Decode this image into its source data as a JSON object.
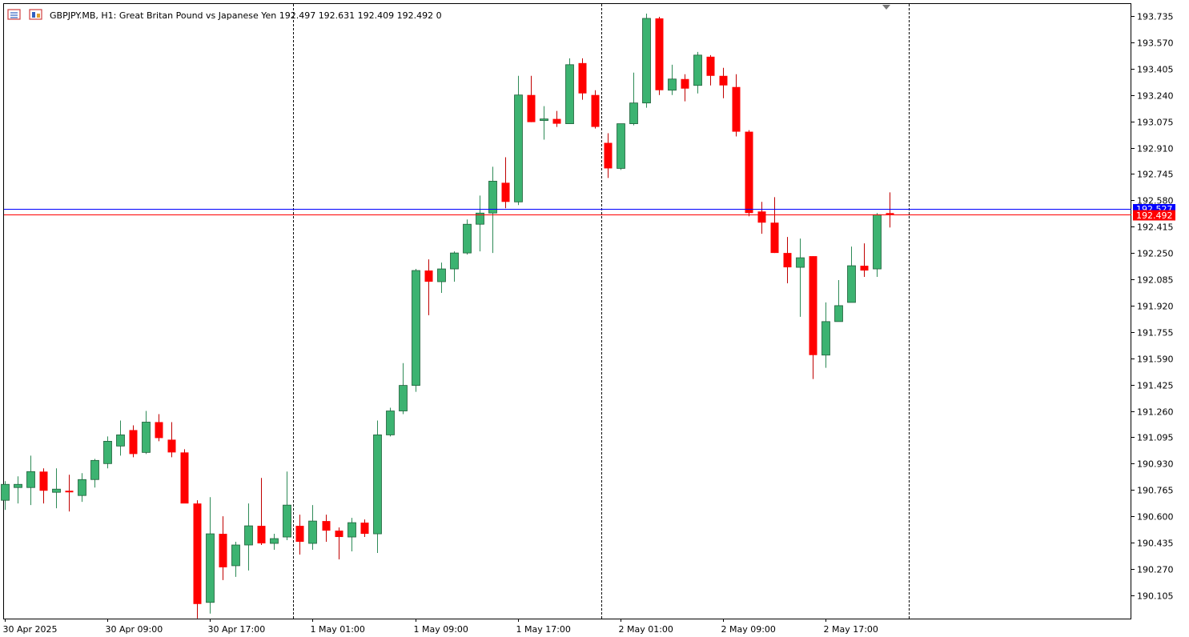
{
  "header": {
    "symbol": "GBPJPY.MB",
    "timeframe": "H1:",
    "description": "Great Britan Pound vs Japanese Yen",
    "ohlc": "192.497 192.631 192.409 192.492",
    "volume": "0",
    "icons": [
      "chart-menu-icon",
      "chart-window-icon"
    ]
  },
  "colors": {
    "bull": "#3cb371",
    "bear": "#ff0000",
    "grid": "#000000",
    "bid_line": "#ff0000",
    "ask_line": "#0000ff",
    "price_tag_bg": "#ff0000",
    "ask_tag_bg": "#0000ff"
  },
  "current_price_label": "192.492",
  "ask_price_label": "192.527",
  "chart_data": {
    "type": "candlestick",
    "timeframe": "H1",
    "ylim": [
      190.0,
      193.8
    ],
    "y_ticks": [
      "193.735",
      "193.570",
      "193.405",
      "193.240",
      "193.075",
      "192.910",
      "192.745",
      "192.580",
      "192.415",
      "192.250",
      "192.085",
      "191.920",
      "191.755",
      "191.590",
      "191.425",
      "191.260",
      "191.095",
      "190.930",
      "190.765",
      "190.600",
      "190.435",
      "190.270",
      "190.105"
    ],
    "x_tick_labels": [
      {
        "index": 0,
        "label": "30 Apr 2025"
      },
      {
        "index": 8,
        "label": "30 Apr 09:00"
      },
      {
        "index": 16,
        "label": "30 Apr 17:00"
      },
      {
        "index": 24,
        "label": "1 May 01:00"
      },
      {
        "index": 32,
        "label": "1 May 09:00"
      },
      {
        "index": 40,
        "label": "1 May 17:00"
      },
      {
        "index": 48,
        "label": "2 May 01:00"
      },
      {
        "index": 56,
        "label": "2 May 09:00"
      },
      {
        "index": 64,
        "label": "2 May 17:00"
      }
    ],
    "day_separators_after_index": [
      22.5,
      46.5,
      70.5
    ],
    "bid": 192.492,
    "ask": 192.527,
    "candles": [
      [
        190.7,
        190.82,
        190.64,
        190.8
      ],
      [
        190.78,
        190.85,
        190.68,
        190.8
      ],
      [
        190.78,
        190.98,
        190.67,
        190.88
      ],
      [
        190.88,
        190.9,
        190.68,
        190.76
      ],
      [
        190.75,
        190.9,
        190.65,
        190.77
      ],
      [
        190.76,
        190.86,
        190.63,
        190.75
      ],
      [
        190.73,
        190.87,
        190.69,
        190.83
      ],
      [
        190.83,
        190.96,
        190.78,
        190.95
      ],
      [
        190.93,
        191.1,
        190.9,
        191.07
      ],
      [
        191.04,
        191.2,
        190.98,
        191.11
      ],
      [
        191.14,
        191.17,
        190.97,
        190.99
      ],
      [
        191.0,
        191.26,
        190.99,
        191.19
      ],
      [
        191.19,
        191.24,
        191.07,
        191.09
      ],
      [
        191.08,
        191.19,
        190.97,
        191.0
      ],
      [
        191.0,
        191.02,
        190.69,
        190.68
      ],
      [
        190.68,
        190.7,
        189.96,
        190.05
      ],
      [
        190.06,
        190.72,
        189.99,
        190.49
      ],
      [
        190.49,
        190.6,
        190.2,
        190.28
      ],
      [
        190.29,
        190.44,
        190.22,
        190.42
      ],
      [
        190.42,
        190.68,
        190.26,
        190.54
      ],
      [
        190.54,
        190.84,
        190.42,
        190.43
      ],
      [
        190.43,
        190.49,
        190.39,
        190.46
      ],
      [
        190.47,
        190.88,
        190.45,
        190.67
      ],
      [
        190.54,
        190.61,
        190.36,
        190.44
      ],
      [
        190.43,
        190.67,
        190.39,
        190.57
      ],
      [
        190.57,
        190.61,
        190.44,
        190.51
      ],
      [
        190.51,
        190.53,
        190.33,
        190.47
      ],
      [
        190.47,
        190.59,
        190.38,
        190.56
      ],
      [
        190.56,
        190.58,
        190.47,
        190.49
      ],
      [
        190.49,
        191.2,
        190.37,
        191.11
      ],
      [
        191.11,
        191.28,
        191.1,
        191.26
      ],
      [
        191.26,
        191.56,
        191.24,
        191.42
      ],
      [
        191.42,
        192.15,
        191.38,
        192.14
      ],
      [
        192.14,
        192.21,
        191.86,
        192.07
      ],
      [
        192.07,
        192.19,
        192.0,
        192.15
      ],
      [
        192.15,
        192.26,
        192.07,
        192.25
      ],
      [
        192.25,
        192.46,
        192.24,
        192.43
      ],
      [
        192.43,
        192.61,
        192.26,
        192.5
      ],
      [
        192.5,
        192.79,
        192.25,
        192.7
      ],
      [
        192.69,
        192.85,
        192.53,
        192.57
      ],
      [
        192.57,
        193.36,
        192.55,
        193.24
      ],
      [
        193.24,
        193.36,
        193.07,
        193.07
      ],
      [
        193.08,
        193.17,
        192.96,
        193.09
      ],
      [
        193.09,
        193.14,
        193.04,
        193.06
      ],
      [
        193.06,
        193.47,
        193.06,
        193.43
      ],
      [
        193.44,
        193.47,
        193.21,
        193.25
      ],
      [
        193.24,
        193.27,
        193.03,
        193.04
      ],
      [
        192.94,
        193.0,
        192.72,
        192.78
      ],
      [
        192.78,
        193.06,
        192.77,
        193.06
      ],
      [
        193.06,
        193.38,
        193.05,
        193.19
      ],
      [
        193.19,
        193.75,
        193.16,
        193.72
      ],
      [
        193.72,
        193.73,
        193.24,
        193.27
      ],
      [
        193.27,
        193.43,
        193.24,
        193.34
      ],
      [
        193.34,
        193.37,
        193.2,
        193.28
      ],
      [
        193.3,
        193.51,
        193.25,
        193.49
      ],
      [
        193.48,
        193.49,
        193.3,
        193.36
      ],
      [
        193.36,
        193.41,
        193.22,
        193.3
      ],
      [
        193.29,
        193.37,
        192.98,
        193.01
      ],
      [
        193.01,
        193.02,
        192.48,
        192.5
      ],
      [
        192.51,
        192.57,
        192.37,
        192.44
      ],
      [
        192.44,
        192.6,
        192.25,
        192.25
      ],
      [
        192.25,
        192.35,
        192.06,
        192.16
      ],
      [
        192.16,
        192.34,
        191.85,
        192.22
      ],
      [
        192.23,
        192.23,
        191.46,
        191.61
      ],
      [
        191.61,
        191.94,
        191.53,
        191.82
      ],
      [
        191.82,
        192.08,
        191.82,
        191.92
      ],
      [
        191.94,
        192.29,
        191.94,
        192.17
      ],
      [
        192.17,
        192.31,
        192.1,
        192.14
      ],
      [
        192.15,
        192.5,
        192.1,
        192.49
      ],
      [
        192.5,
        192.63,
        192.41,
        192.49
      ]
    ]
  }
}
